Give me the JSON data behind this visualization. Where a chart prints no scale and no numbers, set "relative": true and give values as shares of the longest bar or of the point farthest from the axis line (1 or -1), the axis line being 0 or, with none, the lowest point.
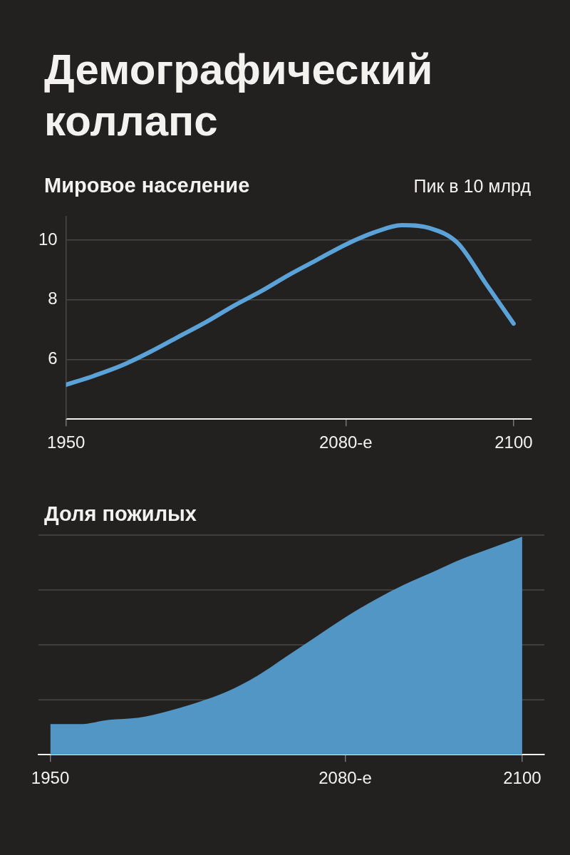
{
  "chart_data": [
    {
      "type": "line",
      "title": "Демографический коллапс",
      "subtitle": "Мировое население",
      "annotations": [
        "Пик в 10 млрд"
      ],
      "categories": [
        "1950",
        null,
        null,
        null,
        null,
        null,
        null,
        null,
        null,
        null,
        "2080-е",
        null,
        null,
        null,
        null,
        null,
        "2100"
      ],
      "series": [
        {
          "color": "#5aa2d8",
          "values": [
            5.15,
            5.45,
            5.8,
            6.25,
            6.75,
            7.25,
            7.8,
            8.3,
            8.85,
            9.35,
            9.85,
            10.25,
            10.5,
            10.4,
            9.9,
            8.55,
            7.2
          ]
        }
      ],
      "ylim": [
        4,
        10.8
      ],
      "yticks": [
        6,
        8,
        10
      ],
      "grid": "y",
      "marker": "none",
      "legend": false
    },
    {
      "type": "area",
      "title": "Доля пожилых",
      "categories": [
        "1950",
        null,
        null,
        null,
        null,
        null,
        null,
        null,
        null,
        null,
        "2080-е",
        null,
        null,
        null,
        null,
        null,
        "2100"
      ],
      "series": [
        {
          "color": "#5296c5",
          "values": [
            0.14,
            0.14,
            0.16,
            0.17,
            0.2,
            0.24,
            0.29,
            0.36,
            0.45,
            0.54,
            0.63,
            0.71,
            0.78,
            0.84,
            0.9,
            0.95,
            1
          ]
        }
      ],
      "relative": true,
      "grid": "y",
      "marker": "none",
      "legend": false
    }
  ]
}
